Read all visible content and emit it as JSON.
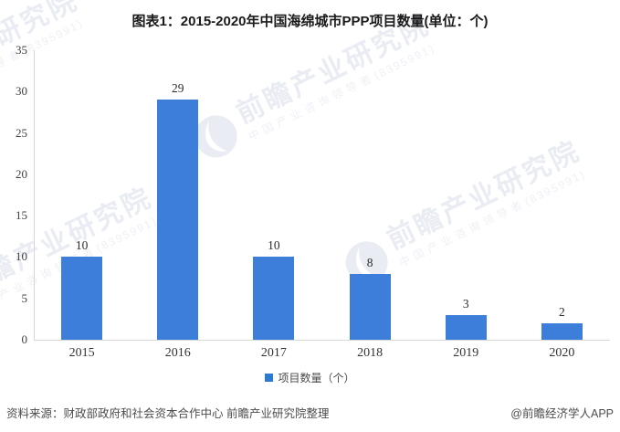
{
  "title": "图表1：2015-2020年中国海绵城市PPP项目数量(单位：个)",
  "chart_data": {
    "type": "bar",
    "title": "图表1：2015-2020年中国海绵城市PPP项目数量(单位：个)",
    "categories": [
      "2015",
      "2016",
      "2017",
      "2018",
      "2019",
      "2020"
    ],
    "series": [
      {
        "name": "项目数量（个）",
        "values": [
          10,
          29,
          10,
          8,
          3,
          2
        ]
      }
    ],
    "xlabel": "",
    "ylabel": "",
    "ylim": [
      0,
      35
    ],
    "yticks": [
      0,
      5,
      10,
      15,
      20,
      25,
      30,
      35
    ],
    "grid": false,
    "legend_position": "bottom",
    "bar_color": "#3e7edb",
    "axis_color": "#d7d7d7",
    "value_label_color": "#2b2b2b"
  },
  "legend": {
    "label": "项目数量（个）",
    "marker_color": "#2b7bd1"
  },
  "watermark": {
    "brand": "前瞻产业研究院",
    "tagline": "中国产业咨询领导者",
    "code": "(8395991)",
    "color": "#e9ecf2"
  },
  "footer": {
    "source": "资料来源：财政部政府和社会资本合作中心 前瞻产业研究院整理",
    "credit": "@前瞻经济学人APP"
  }
}
